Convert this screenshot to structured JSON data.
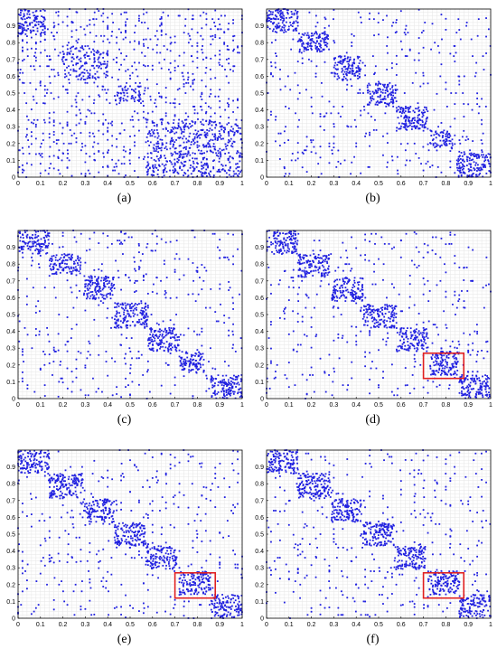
{
  "colors": {
    "dots": "#2020e0",
    "grid": "#e6e6e6",
    "frame": "#000000",
    "highlight": "#e02020"
  },
  "chart_data": [
    {
      "type": "scatter",
      "caption": "(a)",
      "xlim": [
        0,
        1
      ],
      "ylim": [
        0,
        1
      ],
      "xticks": [
        "0",
        "0.1",
        "0.2",
        "0.3",
        "0.4",
        "0.5",
        "0.6",
        "0.7",
        "0.8",
        "0.9",
        "1"
      ],
      "yticks": [
        "0",
        "0.1",
        "0.2",
        "0.3",
        "0.4",
        "0.5",
        "0.6",
        "0.7",
        "0.8",
        "0.9"
      ],
      "grid": true,
      "blocks": [
        {
          "x": [
            0.0,
            0.12
          ],
          "y": [
            0.85,
            1.0
          ],
          "density": "high"
        },
        {
          "x": [
            0.2,
            0.4
          ],
          "y": [
            0.58,
            0.78
          ],
          "density": "medium"
        },
        {
          "x": [
            0.43,
            0.57
          ],
          "y": [
            0.45,
            0.55
          ],
          "density": "medium"
        },
        {
          "x": [
            0.57,
            1.0
          ],
          "y": [
            0.0,
            0.35
          ],
          "density": "medium"
        }
      ],
      "highlight": null
    },
    {
      "type": "scatter",
      "caption": "(b)",
      "xlim": [
        0,
        1
      ],
      "ylim": [
        0,
        1
      ],
      "xticks": [
        "0",
        "0.1",
        "0.2",
        "0.3",
        "0.4",
        "0.5",
        "0.6",
        "0.7",
        "0.8",
        "0.9",
        "1"
      ],
      "yticks": [
        "0",
        "0.1",
        "0.2",
        "0.3",
        "0.4",
        "0.5",
        "0.6",
        "0.7",
        "0.8",
        "0.9"
      ],
      "grid": true,
      "blocks": [
        {
          "x": [
            0.0,
            0.14
          ],
          "y": [
            0.86,
            1.0
          ],
          "density": "high"
        },
        {
          "x": [
            0.14,
            0.28
          ],
          "y": [
            0.74,
            0.86
          ],
          "density": "high"
        },
        {
          "x": [
            0.3,
            0.42
          ],
          "y": [
            0.58,
            0.72
          ],
          "density": "high"
        },
        {
          "x": [
            0.45,
            0.58
          ],
          "y": [
            0.42,
            0.56
          ],
          "density": "high"
        },
        {
          "x": [
            0.58,
            0.72
          ],
          "y": [
            0.28,
            0.42
          ],
          "density": "high"
        },
        {
          "x": [
            0.73,
            0.83
          ],
          "y": [
            0.17,
            0.28
          ],
          "density": "high"
        },
        {
          "x": [
            0.85,
            1.0
          ],
          "y": [
            0.0,
            0.15
          ],
          "density": "high"
        }
      ],
      "highlight": null
    },
    {
      "type": "scatter",
      "caption": "(c)",
      "xlim": [
        0,
        1
      ],
      "ylim": [
        0,
        1
      ],
      "xticks": [
        "0",
        "0.1",
        "0.2",
        "0.3",
        "0.4",
        "0.5",
        "0.6",
        "0.7",
        "0.8",
        "0.9",
        "1"
      ],
      "yticks": [
        "0",
        "0.1",
        "0.2",
        "0.3",
        "0.4",
        "0.5",
        "0.6",
        "0.7",
        "0.8",
        "0.9"
      ],
      "grid": true,
      "blocks": [
        {
          "x": [
            0.0,
            0.14
          ],
          "y": [
            0.86,
            1.0
          ],
          "density": "high"
        },
        {
          "x": [
            0.14,
            0.28
          ],
          "y": [
            0.74,
            0.86
          ],
          "density": "high"
        },
        {
          "x": [
            0.29,
            0.43
          ],
          "y": [
            0.59,
            0.73
          ],
          "density": "high"
        },
        {
          "x": [
            0.43,
            0.58
          ],
          "y": [
            0.42,
            0.57
          ],
          "density": "high"
        },
        {
          "x": [
            0.58,
            0.72
          ],
          "y": [
            0.28,
            0.42
          ],
          "density": "high"
        },
        {
          "x": [
            0.72,
            0.83
          ],
          "y": [
            0.15,
            0.28
          ],
          "density": "high"
        },
        {
          "x": [
            0.86,
            1.0
          ],
          "y": [
            0.0,
            0.14
          ],
          "density": "high"
        }
      ],
      "highlight": null
    },
    {
      "type": "scatter",
      "caption": "(d)",
      "xlim": [
        0,
        1
      ],
      "ylim": [
        0,
        1
      ],
      "xticks": [
        "0",
        "0.1",
        "0.2",
        "0.3",
        "0.4",
        "0.5",
        "0.6",
        "0.7",
        "0.8",
        "0.9",
        "1"
      ],
      "yticks": [
        "0",
        "0.1",
        "0.2",
        "0.3",
        "0.4",
        "0.5",
        "0.6",
        "0.7",
        "0.8",
        "0.9"
      ],
      "grid": true,
      "blocks": [
        {
          "x": [
            0.0,
            0.14
          ],
          "y": [
            0.86,
            1.0
          ],
          "density": "high"
        },
        {
          "x": [
            0.14,
            0.28
          ],
          "y": [
            0.72,
            0.86
          ],
          "density": "high"
        },
        {
          "x": [
            0.29,
            0.43
          ],
          "y": [
            0.58,
            0.72
          ],
          "density": "high"
        },
        {
          "x": [
            0.43,
            0.58
          ],
          "y": [
            0.42,
            0.56
          ],
          "density": "high"
        },
        {
          "x": [
            0.58,
            0.72
          ],
          "y": [
            0.28,
            0.42
          ],
          "density": "high"
        },
        {
          "x": [
            0.73,
            0.86
          ],
          "y": [
            0.14,
            0.28
          ],
          "density": "high"
        },
        {
          "x": [
            0.86,
            1.0
          ],
          "y": [
            0.0,
            0.14
          ],
          "density": "high"
        }
      ],
      "highlight": {
        "x": [
          0.7,
          0.88
        ],
        "y": [
          0.12,
          0.27
        ]
      }
    },
    {
      "type": "scatter",
      "caption": "(e)",
      "xlim": [
        0,
        1
      ],
      "ylim": [
        0,
        1
      ],
      "xticks": [
        "0",
        "0.1",
        "0.2",
        "0.3",
        "0.4",
        "0.5",
        "0.6",
        "0.7",
        "0.8",
        "0.9",
        "1"
      ],
      "yticks": [
        "0",
        "0.1",
        "0.2",
        "0.3",
        "0.4",
        "0.5",
        "0.6",
        "0.7",
        "0.8",
        "0.9"
      ],
      "grid": true,
      "blocks": [
        {
          "x": [
            0.0,
            0.14
          ],
          "y": [
            0.86,
            1.0
          ],
          "density": "high"
        },
        {
          "x": [
            0.14,
            0.29
          ],
          "y": [
            0.71,
            0.86
          ],
          "density": "high"
        },
        {
          "x": [
            0.29,
            0.43
          ],
          "y": [
            0.57,
            0.71
          ],
          "density": "high"
        },
        {
          "x": [
            0.43,
            0.57
          ],
          "y": [
            0.43,
            0.57
          ],
          "density": "high"
        },
        {
          "x": [
            0.57,
            0.71
          ],
          "y": [
            0.29,
            0.43
          ],
          "density": "high"
        },
        {
          "x": [
            0.72,
            0.86
          ],
          "y": [
            0.14,
            0.28
          ],
          "density": "high"
        },
        {
          "x": [
            0.86,
            1.0
          ],
          "y": [
            0.0,
            0.14
          ],
          "density": "high"
        }
      ],
      "highlight": {
        "x": [
          0.7,
          0.88
        ],
        "y": [
          0.12,
          0.27
        ]
      }
    },
    {
      "type": "scatter",
      "caption": "(f)",
      "xlim": [
        0,
        1
      ],
      "ylim": [
        0,
        1
      ],
      "xticks": [
        "0",
        "0.1",
        "0.2",
        "0.3",
        "0.4",
        "0.5",
        "0.6",
        "0.7",
        "0.8",
        "0.9",
        "1"
      ],
      "yticks": [
        "0",
        "0.1",
        "0.2",
        "0.3",
        "0.4",
        "0.5",
        "0.6",
        "0.7",
        "0.8",
        "0.9"
      ],
      "grid": true,
      "blocks": [
        {
          "x": [
            0.0,
            0.14
          ],
          "y": [
            0.86,
            1.0
          ],
          "density": "high"
        },
        {
          "x": [
            0.14,
            0.29
          ],
          "y": [
            0.71,
            0.86
          ],
          "density": "high"
        },
        {
          "x": [
            0.29,
            0.43
          ],
          "y": [
            0.57,
            0.71
          ],
          "density": "high"
        },
        {
          "x": [
            0.43,
            0.57
          ],
          "y": [
            0.43,
            0.57
          ],
          "density": "high"
        },
        {
          "x": [
            0.57,
            0.71
          ],
          "y": [
            0.29,
            0.43
          ],
          "density": "high"
        },
        {
          "x": [
            0.72,
            0.86
          ],
          "y": [
            0.14,
            0.28
          ],
          "density": "high"
        },
        {
          "x": [
            0.86,
            1.0
          ],
          "y": [
            0.0,
            0.14
          ],
          "density": "high"
        }
      ],
      "highlight": {
        "x": [
          0.7,
          0.88
        ],
        "y": [
          0.12,
          0.27
        ]
      }
    }
  ]
}
